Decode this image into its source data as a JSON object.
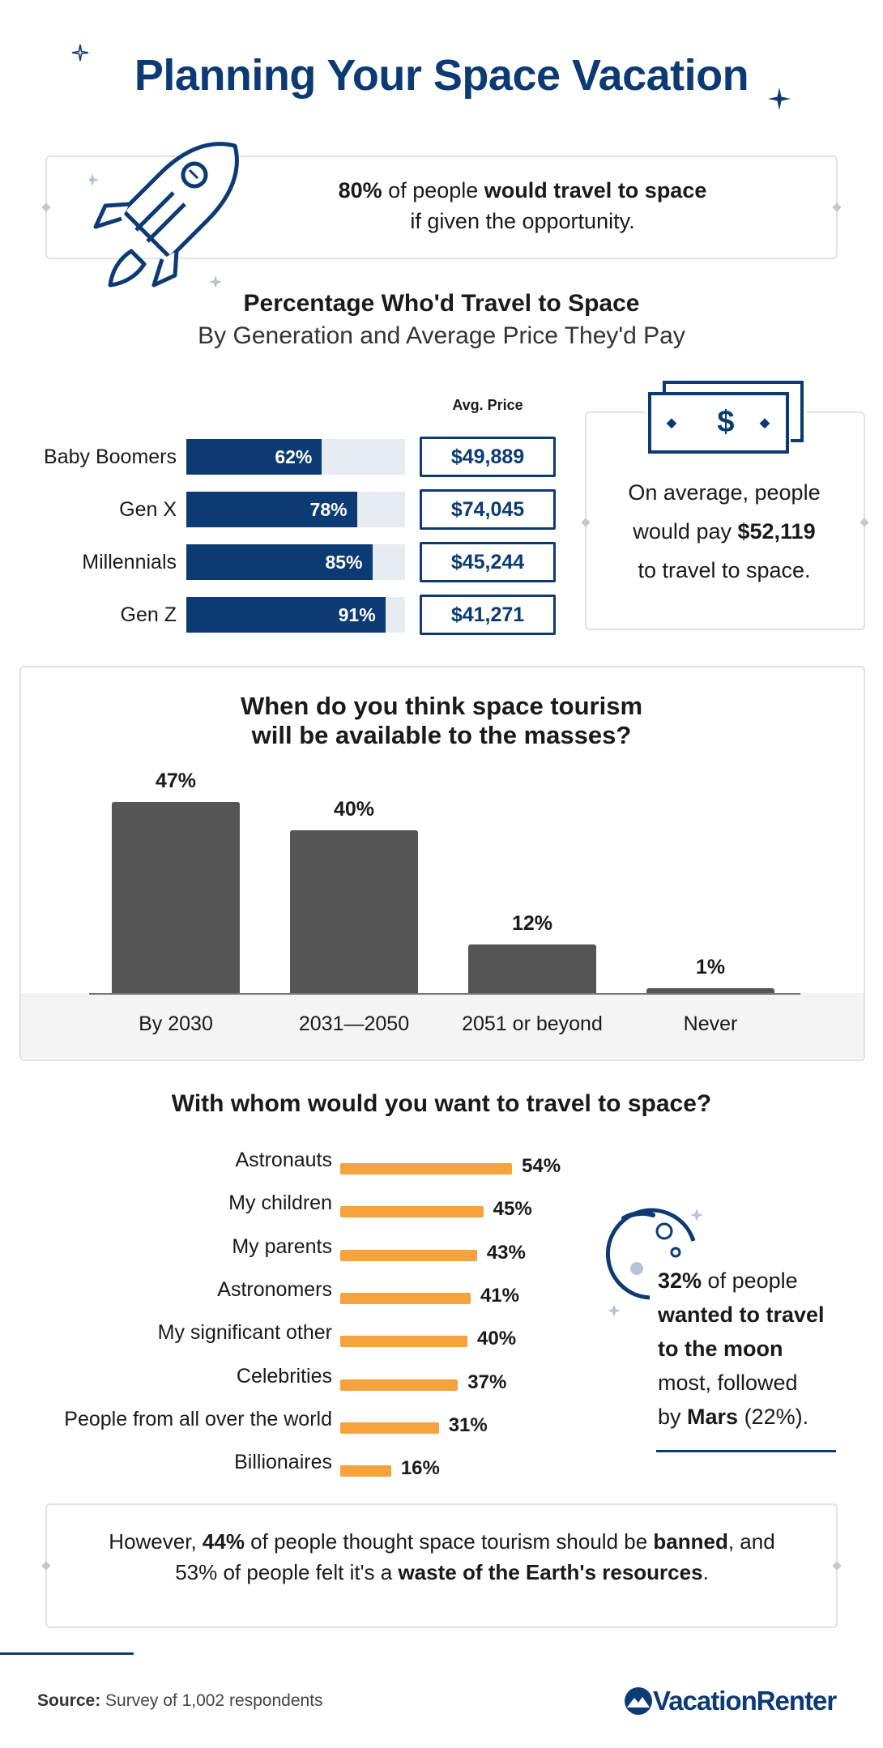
{
  "title": "Planning Your Space Vacation",
  "banner": {
    "pct": "80%",
    "text_mid": " of people ",
    "text_bold": "would travel to space",
    "line2": "if given the opportunity."
  },
  "generation_section": {
    "title": "Percentage Who'd Travel to Space",
    "subtitle": "By Generation and Average Price They'd Pay",
    "avg_price_label": "Avg. Price",
    "avg_note": {
      "line1": "On average, people",
      "line2_pre": "would pay ",
      "amount": "$52,119",
      "line3": "to travel to space."
    },
    "currency_icon": "$"
  },
  "timeline_section": {
    "title_line1": "When do you think space tourism",
    "title_line2": "will be available to the masses?"
  },
  "companion_section": {
    "title": "With whom would you want to travel to space?"
  },
  "moon_note": {
    "pct": "32%",
    "pre": " of people",
    "bold1": "wanted to travel",
    "bold2": "to the moon",
    "post1": "most, followed",
    "post2_pre": "by ",
    "mars": "Mars",
    "mars_pct": " (22%)."
  },
  "bottom_note": {
    "p1": "However, ",
    "b1": "44%",
    "p2": " of people thought space tourism should be ",
    "b2": "banned",
    "p3": ", and",
    "p4": "53% of people felt it's a ",
    "b3": "waste of the Earth's resources",
    "p5": "."
  },
  "source": {
    "label": "Source:",
    "text": " Survey of 1,002 respondents"
  },
  "brand": "VacationRenter",
  "colors": {
    "navy": "#0c3b73",
    "gray_bar": "#555555",
    "orange": "#f6a23d",
    "track": "#e7ecf2"
  },
  "chart_data": [
    {
      "type": "bar",
      "orientation": "horizontal",
      "title": "Percentage Who'd Travel to Space",
      "subtitle": "By Generation and Average Price They'd Pay",
      "categories": [
        "Baby Boomers",
        "Gen X",
        "Millennials",
        "Gen Z"
      ],
      "values": [
        62,
        78,
        85,
        91
      ],
      "value_labels": [
        "62%",
        "78%",
        "85%",
        "91%"
      ],
      "avg_price": [
        "$49,889",
        "$74,045",
        "$45,244",
        "$41,271"
      ],
      "xlim": [
        0,
        100
      ]
    },
    {
      "type": "bar",
      "title": "When do you think space tourism will be available to the masses?",
      "categories": [
        "By 2030",
        "2031—2050",
        "2051 or beyond",
        "Never"
      ],
      "values": [
        47,
        40,
        12,
        1
      ],
      "value_labels": [
        "47%",
        "40%",
        "12%",
        "1%"
      ],
      "ylim": [
        0,
        47
      ]
    },
    {
      "type": "bar",
      "orientation": "horizontal",
      "title": "With whom would you want to travel to space?",
      "categories": [
        "Astronauts",
        "My children",
        "My parents",
        "Astronomers",
        "My significant other",
        "Celebrities",
        "People from all over the world",
        "Billionaires"
      ],
      "values": [
        54,
        45,
        43,
        41,
        40,
        37,
        31,
        16
      ],
      "value_labels": [
        "54%",
        "45%",
        "43%",
        "41%",
        "40%",
        "37%",
        "31%",
        "16%"
      ],
      "xlim": [
        0,
        54
      ]
    }
  ]
}
